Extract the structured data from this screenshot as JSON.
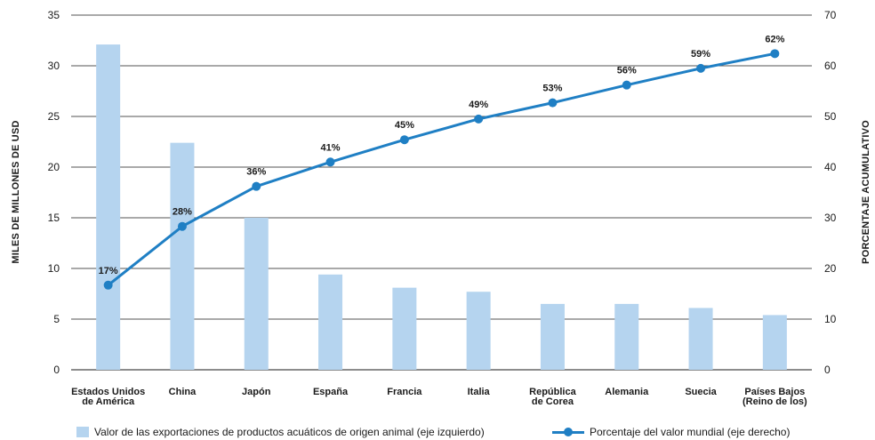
{
  "chart_data": {
    "type": "bar",
    "categories": [
      [
        "Estados Unidos",
        "de América"
      ],
      [
        "China"
      ],
      [
        "Japón"
      ],
      [
        "España"
      ],
      [
        "Francia"
      ],
      [
        "Italia"
      ],
      [
        "República",
        "de Corea"
      ],
      [
        "Alemania"
      ],
      [
        "Suecia"
      ],
      [
        "Países Bajos",
        "(Reino de los)"
      ]
    ],
    "left_axis": {
      "label": "MILES DE MILLONES DE USD",
      "ylim": [
        0,
        35
      ],
      "ticks": [
        "0",
        "5",
        "10",
        "15",
        "20",
        "25",
        "30",
        "35"
      ]
    },
    "right_axis": {
      "label": "PORCENTAJE ACUMULATIVO",
      "ylim": [
        0,
        70
      ],
      "ticks": [
        "0",
        "10",
        "20",
        "30",
        "40",
        "50",
        "60",
        "70"
      ]
    },
    "series": [
      {
        "name": "Valor de las exportaciones de productos acuáticos de origen animal (eje izquierdo)",
        "type": "bar",
        "axis": "left",
        "color": "#b5d4ef",
        "values": [
          32.1,
          22.4,
          15.0,
          9.4,
          8.1,
          7.7,
          6.5,
          6.5,
          6.1,
          5.4
        ]
      },
      {
        "name": "Porcentaje del valor mundial (eje derecho)",
        "type": "line",
        "axis": "right",
        "color": "#1f7fc4",
        "values": [
          16.7,
          28.3,
          36.2,
          41.0,
          45.4,
          49.5,
          52.7,
          56.2,
          59.5,
          62.4
        ],
        "labels": [
          "17%",
          "28%",
          "36%",
          "41%",
          "45%",
          "49%",
          "53%",
          "56%",
          "59%",
          "62%"
        ]
      }
    ],
    "grid": "horizontal",
    "legend": "bottom"
  }
}
